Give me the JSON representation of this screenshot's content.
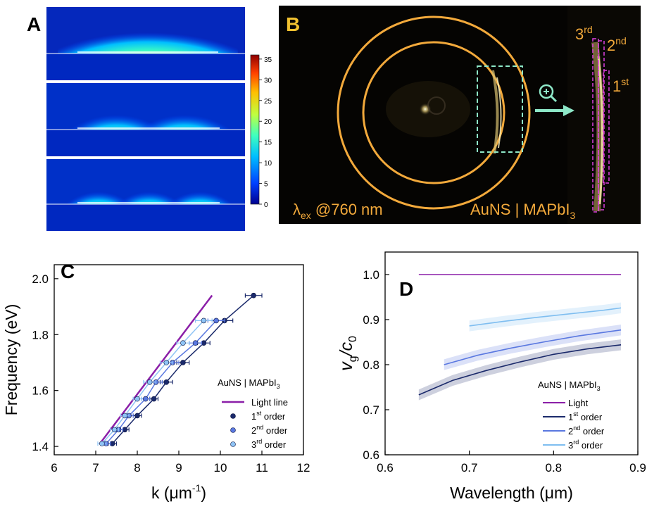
{
  "panel_a": {
    "label": "A",
    "colorbar_ticks": [
      "35",
      "30",
      "25",
      "20",
      "15",
      "10",
      "5",
      "0"
    ],
    "colorbar_range": [
      0,
      36
    ],
    "modes": [
      1,
      2,
      3
    ],
    "colors": [
      "#00008f",
      "#0040ff",
      "#00bfff",
      "#40ffbf",
      "#bfff40",
      "#ffbf00",
      "#ff4000",
      "#8f0000"
    ]
  },
  "panel_b": {
    "label": "B",
    "excitation_prefix": "λ",
    "excitation_sub": "ex",
    "excitation_suffix": " @760 nm",
    "material_prefix": "AuNS | MAPbI",
    "material_sub": "3",
    "order_labels": [
      {
        "num": "3",
        "sup": "rd"
      },
      {
        "num": "2",
        "sup": "nd"
      },
      {
        "num": "1",
        "sup": "st"
      }
    ],
    "ring_color": "#f2a93b",
    "box_color": "#8ee8c8",
    "fringe_color": "#e040e0"
  },
  "chart_data": [
    {
      "panel": "C",
      "type": "scatter",
      "xlabel_prefix": "k (",
      "xlabel_unit": "μm",
      "xlabel_sup": "-1",
      "xlabel_suffix": ")",
      "ylabel": "Frequency (eV)",
      "xlim": [
        6,
        12
      ],
      "ylim": [
        1.37,
        2.05
      ],
      "xticks": [
        "6",
        "7",
        "8",
        "9",
        "10",
        "11",
        "12"
      ],
      "yticks": [
        "1.4",
        "1.6",
        "1.8",
        "2.0"
      ],
      "legend_title": "AuNS | MAPbI",
      "legend_title_sub": "3",
      "light_line": {
        "name": "Light line",
        "x": [
          7.1,
          9.8
        ],
        "y": [
          1.41,
          1.94
        ],
        "color": "#8b1fa8"
      },
      "series": [
        {
          "name_num": "1",
          "name_sup": "st",
          "name_suffix": " order",
          "color": "#1b2a6b",
          "x": [
            7.4,
            7.7,
            8.0,
            8.4,
            8.7,
            9.1,
            9.6,
            10.1,
            10.8
          ],
          "y": [
            1.41,
            1.46,
            1.51,
            1.57,
            1.63,
            1.7,
            1.77,
            1.85,
            1.94
          ],
          "xerr": [
            0.1,
            0.1,
            0.1,
            0.1,
            0.15,
            0.15,
            0.15,
            0.2,
            0.2
          ]
        },
        {
          "name_num": "2",
          "name_sup": "nd",
          "name_suffix": " order",
          "color": "#5a78e0",
          "x": [
            7.25,
            7.55,
            7.8,
            8.2,
            8.45,
            8.85,
            9.4,
            9.9
          ],
          "y": [
            1.41,
            1.46,
            1.51,
            1.57,
            1.63,
            1.7,
            1.77,
            1.85
          ],
          "xerr": [
            0.1,
            0.1,
            0.1,
            0.1,
            0.15,
            0.15,
            0.15,
            0.2
          ]
        },
        {
          "name_num": "3",
          "name_sup": "rd",
          "name_suffix": " order",
          "color": "#8fc4f5",
          "x": [
            7.15,
            7.45,
            7.7,
            8.0,
            8.3,
            8.7,
            9.1,
            9.6
          ],
          "y": [
            1.41,
            1.46,
            1.51,
            1.57,
            1.63,
            1.7,
            1.77,
            1.85
          ],
          "xerr": [
            0.1,
            0.1,
            0.1,
            0.1,
            0.15,
            0.15,
            0.15,
            0.2
          ]
        }
      ]
    },
    {
      "panel": "D",
      "type": "line",
      "xlabel_prefix": "Wavelength (",
      "xlabel_unit": "μm",
      "xlabel_suffix": ")",
      "ylabel_main": "v",
      "ylabel_sub1": "g",
      "ylabel_slash": "/c",
      "ylabel_sub2": "0",
      "xlim": [
        0.6,
        0.9
      ],
      "ylim": [
        0.6,
        1.05
      ],
      "xticks": [
        "0.6",
        "0.7",
        "0.8",
        "0.9"
      ],
      "yticks": [
        "0.6",
        "0.7",
        "0.8",
        "0.9",
        "1.0"
      ],
      "legend_title": "AuNS | MAPbI",
      "legend_title_sub": "3",
      "series": [
        {
          "name_num": "",
          "name_sup": "",
          "name_suffix": "Light",
          "color": "#8b1fa8",
          "band": 0,
          "x": [
            0.64,
            0.88
          ],
          "y": [
            1.0,
            1.0
          ]
        },
        {
          "name_num": "1",
          "name_sup": "st",
          "name_suffix": " order",
          "color": "#1b2a6b",
          "band": 0.012,
          "x": [
            0.64,
            0.68,
            0.72,
            0.76,
            0.8,
            0.84,
            0.88
          ],
          "y": [
            0.733,
            0.765,
            0.787,
            0.806,
            0.823,
            0.835,
            0.844
          ]
        },
        {
          "name_num": "2",
          "name_sup": "nd",
          "name_suffix": " order",
          "color": "#5a78e0",
          "band": 0.012,
          "x": [
            0.67,
            0.71,
            0.75,
            0.79,
            0.83,
            0.88
          ],
          "y": [
            0.8,
            0.821,
            0.837,
            0.851,
            0.864,
            0.877
          ]
        },
        {
          "name_num": "3",
          "name_sup": "rd",
          "name_suffix": " order",
          "color": "#7fbef0",
          "band": 0.012,
          "x": [
            0.7,
            0.74,
            0.78,
            0.82,
            0.86,
            0.88
          ],
          "y": [
            0.886,
            0.896,
            0.905,
            0.913,
            0.921,
            0.926
          ]
        }
      ]
    }
  ]
}
